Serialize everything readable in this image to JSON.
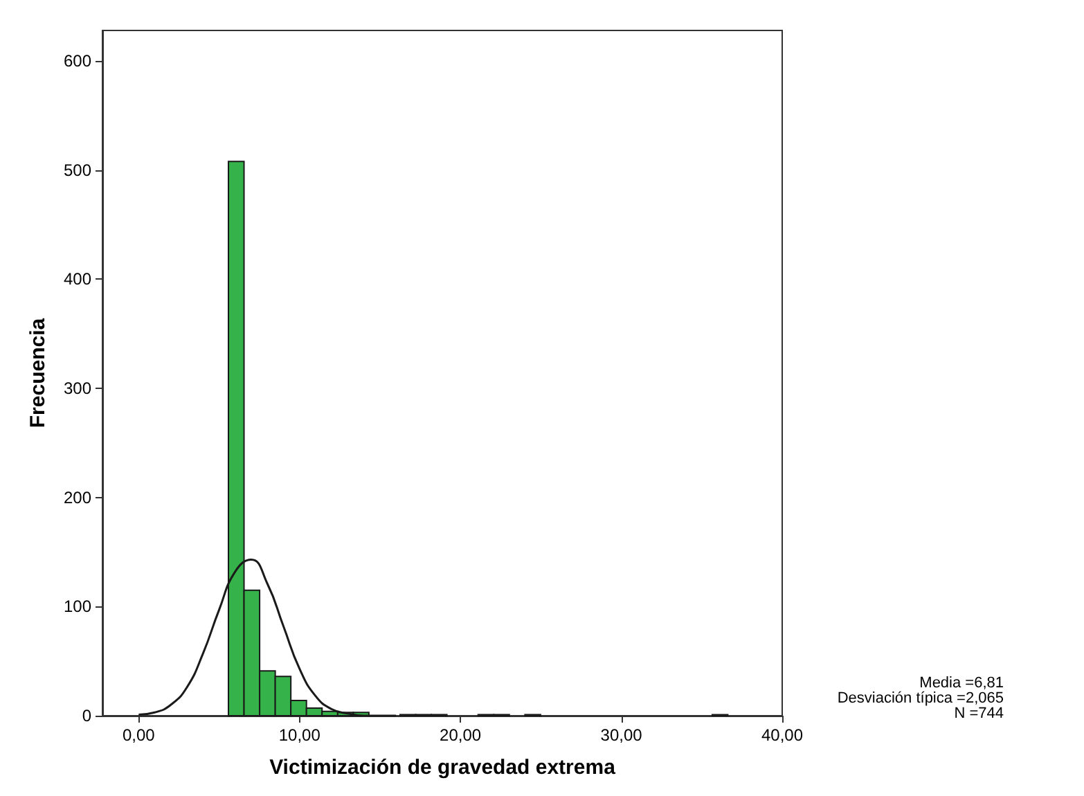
{
  "chart_data": {
    "type": "histogram",
    "xlabel": "Victimización de gravedad extrema",
    "ylabel": "Frecuencia",
    "bins": [
      5.58,
      6.55,
      7.52,
      8.49,
      9.46,
      10.43,
      11.4,
      12.37,
      13.34,
      14.31,
      15.28,
      16.25,
      17.22,
      18.19,
      19.16,
      20.13,
      21.1,
      22.07,
      23.04,
      24.01,
      24.98,
      25.95,
      26.92,
      27.89,
      28.86,
      29.83,
      30.8,
      31.77,
      32.74,
      33.71,
      34.68,
      35.65,
      36.62
    ],
    "values": [
      508,
      115,
      41,
      36,
      14,
      7,
      4,
      3,
      3,
      0,
      0,
      1,
      1,
      1,
      0,
      0,
      1,
      1,
      0,
      1,
      0,
      0,
      0,
      0,
      0,
      0,
      0,
      0,
      0,
      0,
      0,
      1
    ],
    "color": "#35b34a",
    "series": [
      {
        "type": "line",
        "color": "#1a1a1a",
        "x": [
          0,
          1,
          2,
          3,
          4,
          5,
          6,
          7,
          8,
          9,
          10,
          11,
          12,
          13,
          14,
          15,
          16
        ],
        "values": [
          1,
          3,
          10,
          26,
          57,
          97,
          132,
          143,
          121,
          82,
          43,
          18,
          6,
          2,
          0,
          0,
          0
        ]
      }
    ],
    "xlim": [
      -2.25,
      40
    ],
    "ylim": [
      0,
      628
    ],
    "xticks": [
      {
        "value": 0,
        "label": "0,00"
      },
      {
        "value": 10,
        "label": "10,00"
      },
      {
        "value": 20,
        "label": "20,00"
      },
      {
        "value": 30,
        "label": "30,00"
      },
      {
        "value": 40,
        "label": "40,00"
      }
    ],
    "yticks": [
      0,
      100,
      200,
      300,
      400,
      500,
      600
    ],
    "grid": false,
    "legend": false,
    "annotations": [
      "Media =6,81",
      "Desviación típica =2,065",
      "N =744"
    ]
  }
}
